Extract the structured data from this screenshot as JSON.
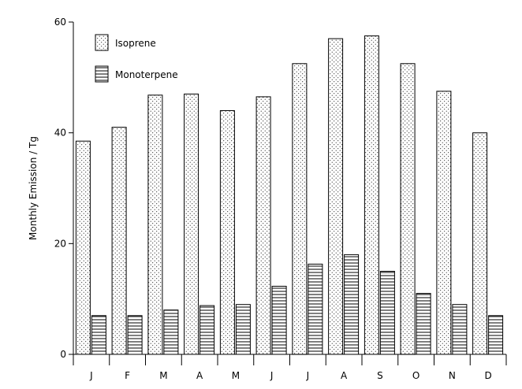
{
  "chart_data": {
    "type": "bar",
    "title": "",
    "xlabel": "",
    "ylabel": "Monthly Emission / Tg",
    "categories": [
      "J",
      "F",
      "M",
      "A",
      "M",
      "J",
      "J",
      "A",
      "S",
      "O",
      "N",
      "D"
    ],
    "yticks": [
      0,
      20,
      40,
      60
    ],
    "ylim": [
      0,
      60
    ],
    "grid": false,
    "legend_position": "top-left",
    "series": [
      {
        "name": "Isoprene",
        "pattern": "dotted",
        "values": [
          38.5,
          41.0,
          46.8,
          47.0,
          44.0,
          46.5,
          52.5,
          57.0,
          57.5,
          52.5,
          47.5,
          40.0
        ]
      },
      {
        "name": "Monoterpene",
        "pattern": "horizontal-lines",
        "values": [
          7.0,
          7.0,
          8.0,
          8.8,
          9.0,
          12.3,
          16.3,
          18.0,
          15.0,
          11.0,
          9.0,
          7.0
        ]
      }
    ]
  }
}
